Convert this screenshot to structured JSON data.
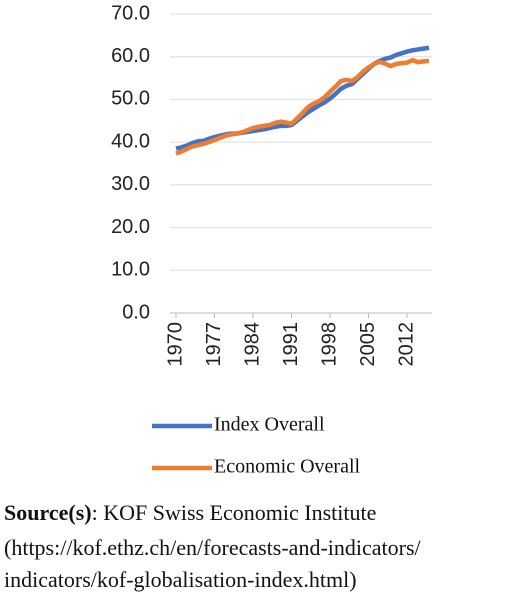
{
  "chart_data": {
    "type": "line",
    "x": [
      1970,
      1971,
      1972,
      1973,
      1974,
      1975,
      1976,
      1977,
      1978,
      1979,
      1980,
      1981,
      1982,
      1983,
      1984,
      1985,
      1986,
      1987,
      1988,
      1989,
      1990,
      1991,
      1992,
      1993,
      1994,
      1995,
      1996,
      1997,
      1998,
      1999,
      2000,
      2001,
      2002,
      2003,
      2004,
      2005,
      2006,
      2007,
      2008,
      2009,
      2010,
      2011,
      2012,
      2013,
      2014,
      2015,
      2016
    ],
    "xlim": [
      1970,
      2016
    ],
    "xticks": [
      1970,
      1977,
      1984,
      1991,
      1998,
      2005,
      2012
    ],
    "ylim": [
      0,
      70
    ],
    "yticks": [
      {
        "value": 0,
        "label": "0.0"
      },
      {
        "value": 10,
        "label": "10.0"
      },
      {
        "value": 20,
        "label": "20.0"
      },
      {
        "value": 30,
        "label": "30.0"
      },
      {
        "value": 40,
        "label": "40.0"
      },
      {
        "value": 50,
        "label": "50.0"
      },
      {
        "value": 60,
        "label": "60.0"
      },
      {
        "value": 70,
        "label": "70.0"
      }
    ],
    "grid": true,
    "series": [
      {
        "name": "Index Overall",
        "color": "#4472c4",
        "values": [
          38.5,
          38.8,
          39.2,
          39.8,
          40.2,
          40.3,
          40.8,
          41.2,
          41.5,
          41.8,
          42.0,
          42.0,
          42.2,
          42.4,
          42.6,
          42.8,
          43.0,
          43.3,
          43.6,
          43.8,
          43.8,
          44.0,
          45.0,
          46.0,
          47.0,
          47.8,
          48.6,
          49.3,
          50.2,
          51.3,
          52.5,
          53.2,
          53.6,
          54.8,
          56.0,
          57.2,
          58.3,
          59.0,
          59.5,
          59.8,
          60.4,
          60.8,
          61.2,
          61.5,
          61.7,
          61.9,
          62.1
        ]
      },
      {
        "name": "Economic Overall",
        "color": "#ed7d31",
        "values": [
          37.3,
          37.8,
          38.4,
          39.0,
          39.3,
          39.6,
          40.0,
          40.5,
          41.0,
          41.5,
          41.8,
          42.0,
          42.3,
          42.8,
          43.3,
          43.6,
          43.8,
          44.0,
          44.5,
          44.8,
          44.6,
          44.3,
          45.5,
          46.8,
          48.2,
          49.0,
          49.6,
          50.5,
          51.8,
          53.0,
          54.3,
          54.6,
          54.3,
          55.2,
          56.5,
          57.5,
          58.3,
          58.8,
          58.4,
          57.8,
          58.3,
          58.5,
          58.6,
          59.2,
          58.7,
          58.9,
          59.0
        ]
      }
    ]
  },
  "source": {
    "label": "Source(s)",
    "lines": [
      ": KOF Swiss Economic Institute",
      "(https://kof.ethz.ch/en/forecasts-and-indicators/",
      "indicators/kof-globalisation-index.html)"
    ]
  }
}
